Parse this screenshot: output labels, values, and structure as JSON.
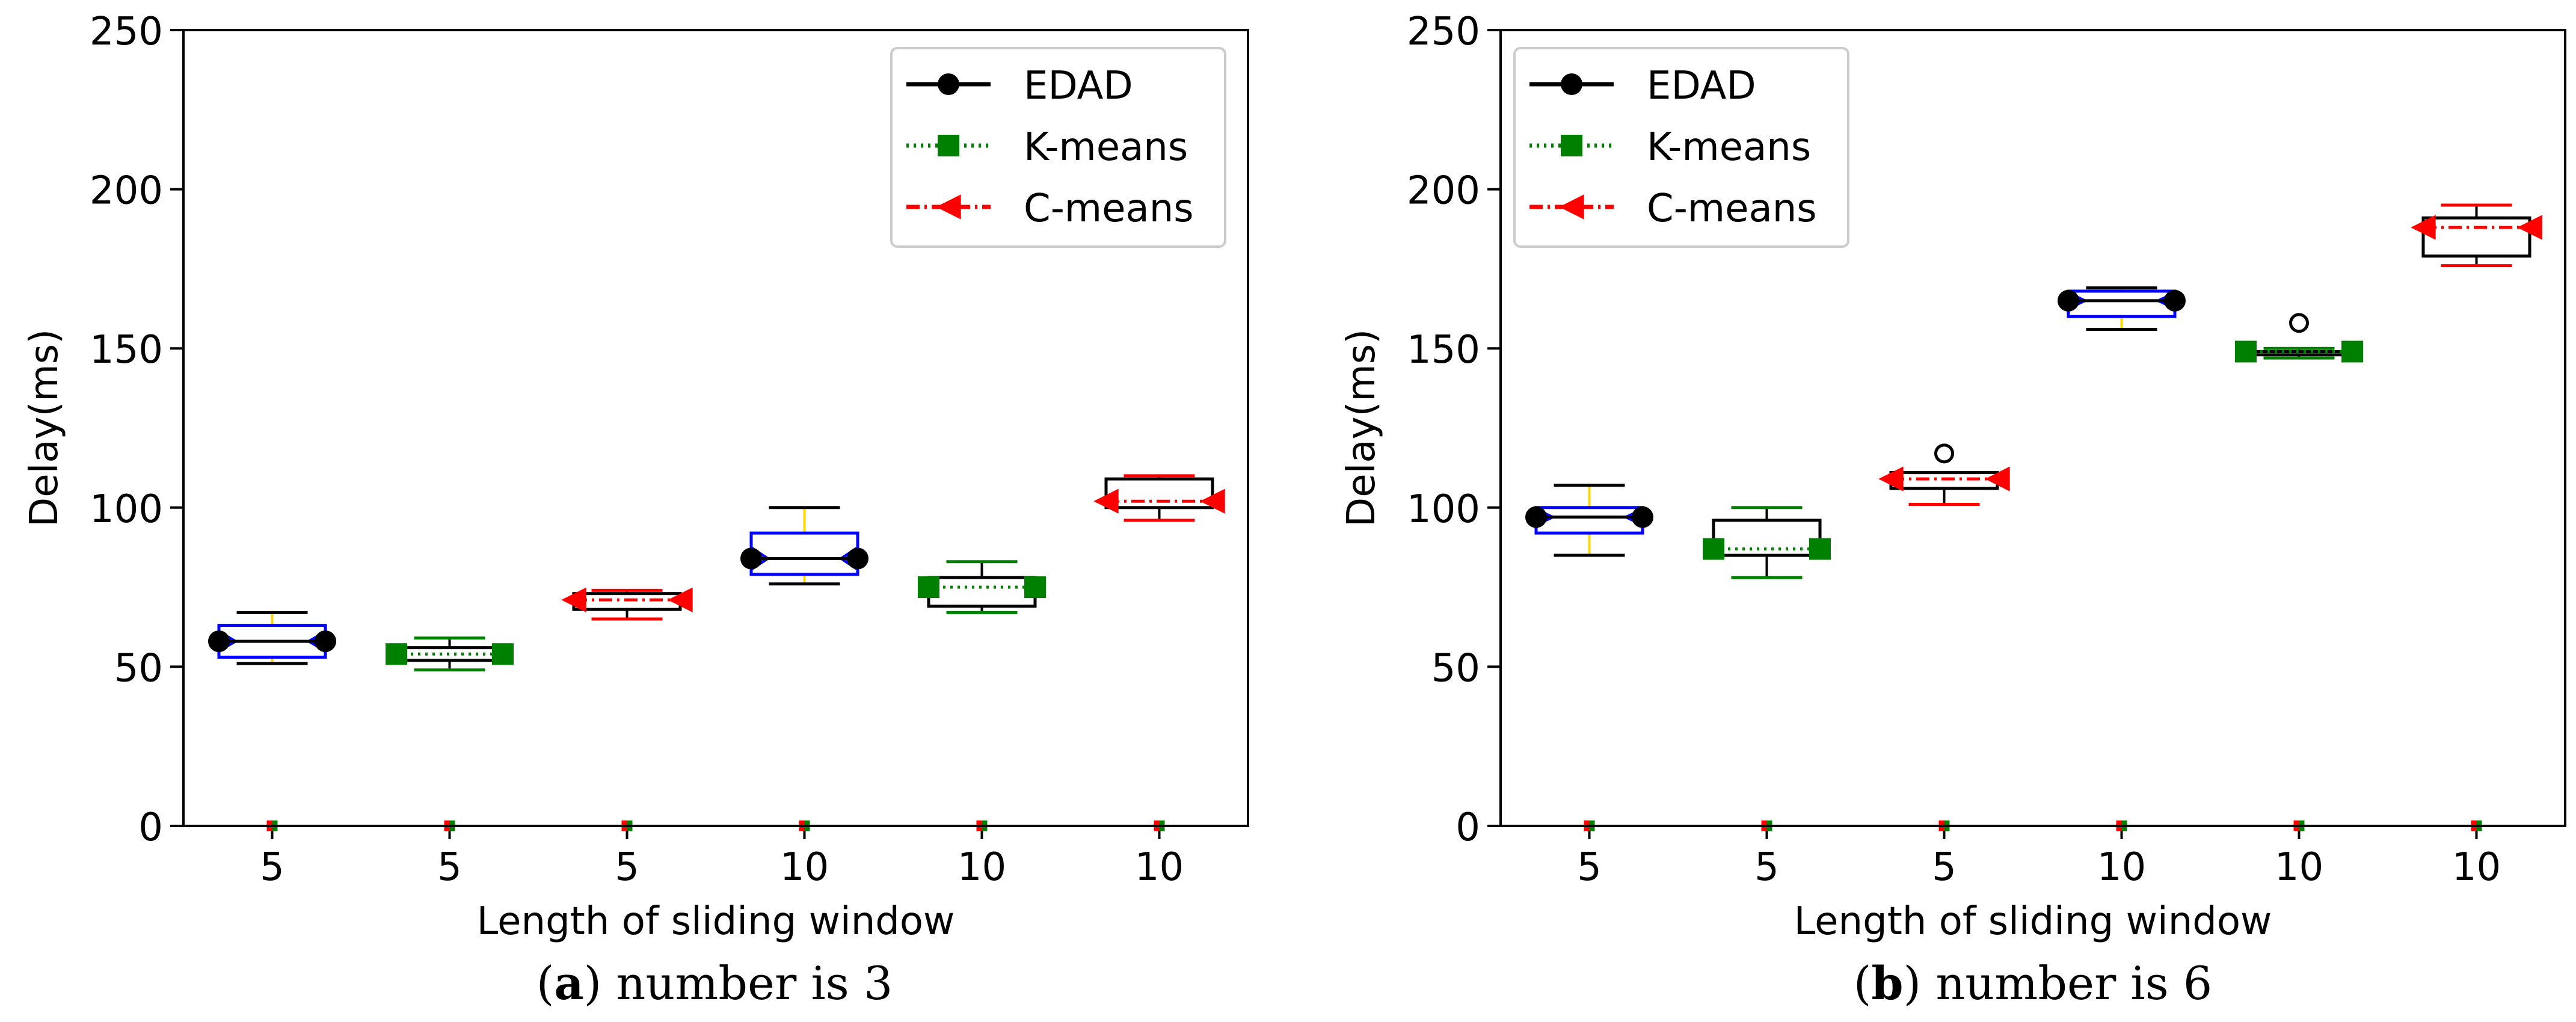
{
  "colors": {
    "edad": "#000000",
    "kmeans": "#008000",
    "cmeans": "#ff0000",
    "notch_box": "#0000ff",
    "whisker_accent": "#ffd700",
    "frame": "#000000"
  },
  "legend": {
    "entries": [
      {
        "label": "EDAD",
        "color": "#000000",
        "linestyle": "solid",
        "marker": "circle"
      },
      {
        "label": "K-means",
        "color": "#008000",
        "linestyle": "dotted",
        "marker": "square"
      },
      {
        "label": "C-means",
        "color": "#ff0000",
        "linestyle": "dashdot",
        "marker": "left-triangle"
      }
    ]
  },
  "chart_data": [
    {
      "type": "box",
      "panel_label": "a",
      "caption_text": "number is 3",
      "xlabel": "Length of sliding window",
      "ylabel": "Delay(ms)",
      "ylim": [
        0,
        250
      ],
      "yticks": [
        0,
        50,
        100,
        150,
        200,
        250
      ],
      "categories": [
        "5",
        "5",
        "5",
        "10",
        "10",
        "10"
      ],
      "legend_position": "top-right",
      "boxes": [
        {
          "series": "EDAD",
          "style": "notched",
          "whisker_low": 51,
          "q1": 53,
          "median": 58,
          "q3": 63,
          "whisker_high": 67,
          "marker_y": 58,
          "outliers": []
        },
        {
          "series": "K-means",
          "style": "plain",
          "whisker_low": 49,
          "q1": 52,
          "median": 54,
          "q3": 56,
          "whisker_high": 59,
          "marker_y": 54,
          "outliers": []
        },
        {
          "series": "C-means",
          "style": "plain",
          "whisker_low": 65,
          "q1": 68,
          "median": 71,
          "q3": 73,
          "whisker_high": 74,
          "marker_y": 71,
          "outliers": []
        },
        {
          "series": "EDAD",
          "style": "notched",
          "whisker_low": 76,
          "q1": 79,
          "median": 84,
          "q3": 92,
          "whisker_high": 100,
          "marker_y": 84,
          "outliers": []
        },
        {
          "series": "K-means",
          "style": "plain",
          "whisker_low": 67,
          "q1": 69,
          "median": 75,
          "q3": 78,
          "whisker_high": 83,
          "marker_y": 75,
          "outliers": []
        },
        {
          "series": "C-means",
          "style": "plain",
          "whisker_low": 96,
          "q1": 100,
          "median": 102,
          "q3": 109,
          "whisker_high": 110,
          "marker_y": 102,
          "outliers": []
        }
      ]
    },
    {
      "type": "box",
      "panel_label": "b",
      "caption_text": "number is 6",
      "xlabel": "Length of sliding window",
      "ylabel": "Delay(ms)",
      "ylim": [
        0,
        250
      ],
      "yticks": [
        0,
        50,
        100,
        150,
        200,
        250
      ],
      "categories": [
        "5",
        "5",
        "5",
        "10",
        "10",
        "10"
      ],
      "legend_position": "top-left",
      "boxes": [
        {
          "series": "EDAD",
          "style": "notched",
          "whisker_low": 85,
          "q1": 92,
          "median": 97,
          "q3": 100,
          "whisker_high": 107,
          "marker_y": 97,
          "outliers": []
        },
        {
          "series": "K-means",
          "style": "plain",
          "whisker_low": 78,
          "q1": 85,
          "median": 87,
          "q3": 96,
          "whisker_high": 100,
          "marker_y": 87,
          "outliers": []
        },
        {
          "series": "C-means",
          "style": "plain",
          "whisker_low": 101,
          "q1": 106,
          "median": 108,
          "q3": 111,
          "whisker_high": 111,
          "marker_y": 109,
          "outliers": [
            117
          ]
        },
        {
          "series": "EDAD",
          "style": "notched",
          "whisker_low": 156,
          "q1": 160,
          "median": 165,
          "q3": 168,
          "whisker_high": 169,
          "marker_y": 165,
          "outliers": []
        },
        {
          "series": "K-means",
          "style": "plain",
          "whisker_low": 147,
          "q1": 148,
          "median": 149,
          "q3": 149,
          "whisker_high": 150,
          "marker_y": 149,
          "outliers": [
            158
          ]
        },
        {
          "series": "C-means",
          "style": "plain",
          "whisker_low": 176,
          "q1": 179,
          "median": 188,
          "q3": 191,
          "whisker_high": 195,
          "marker_y": 188,
          "outliers": []
        }
      ]
    }
  ]
}
